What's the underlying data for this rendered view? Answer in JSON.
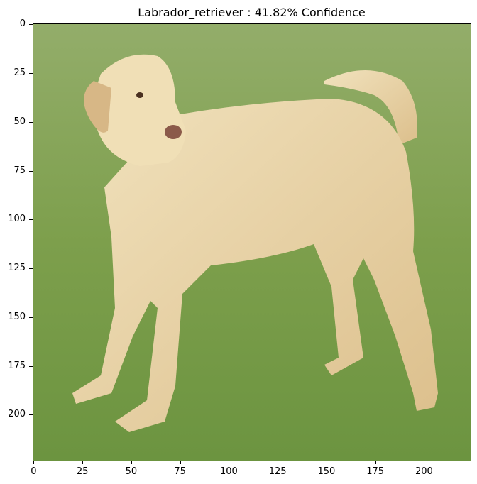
{
  "title": "Labrador_retriever : 41.82% Confidence",
  "image": {
    "subject": "labrador-retriever-photo",
    "width_units": 224,
    "height_units": 224
  },
  "axes": {
    "xticks": [
      "0",
      "25",
      "50",
      "75",
      "100",
      "125",
      "150",
      "175",
      "200"
    ],
    "yticks": [
      "0",
      "25",
      "50",
      "75",
      "100",
      "125",
      "150",
      "175",
      "200"
    ],
    "xlim": [
      0,
      224
    ],
    "ylim": [
      224,
      0
    ]
  },
  "colors": {
    "grass": "#7fa04e",
    "dog": "#e8d2a4"
  }
}
